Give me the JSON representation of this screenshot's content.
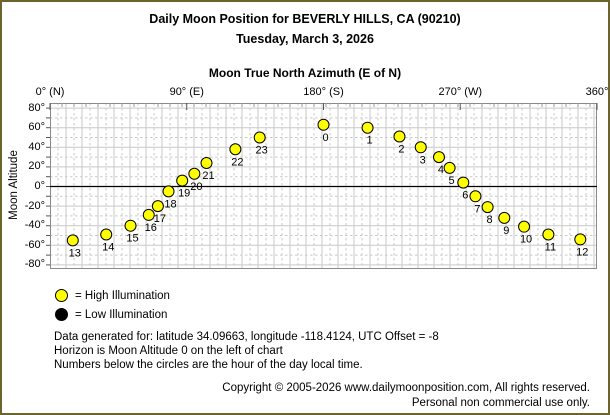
{
  "header": {
    "title": "Daily Moon Position for BEVERLY HILLS, CA (90210)",
    "subtitle": "Tuesday, March 3, 2026"
  },
  "chart_data": {
    "type": "scatter",
    "title": "Moon True North Azimuth (E of N)",
    "xlabel": "Moon True North Azimuth (E of N)",
    "ylabel": "Moon Altitude",
    "xlim": [
      0,
      360
    ],
    "ylim": [
      -85,
      85
    ],
    "grid": true,
    "horizon_altitude": 0,
    "x_ticks": [
      {
        "value": 0,
        "label": "0° (N)"
      },
      {
        "value": 90,
        "label": "90° (E)"
      },
      {
        "value": 180,
        "label": "180° (S)"
      },
      {
        "value": 270,
        "label": "270° (W)"
      },
      {
        "value": 360,
        "label": "360°"
      }
    ],
    "y_ticks": [
      {
        "value": 80,
        "label": "80°"
      },
      {
        "value": 60,
        "label": "60°"
      },
      {
        "value": 40,
        "label": "40°"
      },
      {
        "value": 20,
        "label": "20°"
      },
      {
        "value": 0,
        "label": "0°"
      },
      {
        "value": -20,
        "label": "-20°"
      },
      {
        "value": -40,
        "label": "-40°"
      },
      {
        "value": -60,
        "label": "-60°"
      },
      {
        "value": -80,
        "label": "-80°"
      }
    ],
    "colors": {
      "high_illumination": "#ffff00",
      "low_illumination": "#000000",
      "grid": "#c9c9c9",
      "plot_border": "#8a8a8a",
      "horizon": "#000000",
      "page_border": "#6b642d"
    },
    "points": [
      {
        "hour": 0,
        "azimuth": 180,
        "altitude": 63,
        "illumination": "high"
      },
      {
        "hour": 1,
        "azimuth": 209,
        "altitude": 60,
        "illumination": "high"
      },
      {
        "hour": 2,
        "azimuth": 230,
        "altitude": 51,
        "illumination": "high"
      },
      {
        "hour": 3,
        "azimuth": 244,
        "altitude": 40,
        "illumination": "high"
      },
      {
        "hour": 4,
        "azimuth": 256,
        "altitude": 30,
        "illumination": "high"
      },
      {
        "hour": 5,
        "azimuth": 263,
        "altitude": 19,
        "illumination": "high"
      },
      {
        "hour": 6,
        "azimuth": 272,
        "altitude": 4,
        "illumination": "high"
      },
      {
        "hour": 7,
        "azimuth": 280,
        "altitude": -10,
        "illumination": "high"
      },
      {
        "hour": 8,
        "azimuth": 288,
        "altitude": -21,
        "illumination": "high"
      },
      {
        "hour": 9,
        "azimuth": 299,
        "altitude": -32,
        "illumination": "high"
      },
      {
        "hour": 10,
        "azimuth": 312,
        "altitude": -41,
        "illumination": "high"
      },
      {
        "hour": 11,
        "azimuth": 328,
        "altitude": -49,
        "illumination": "high"
      },
      {
        "hour": 12,
        "azimuth": 349,
        "altitude": -54,
        "illumination": "high"
      },
      {
        "hour": 13,
        "azimuth": 15,
        "altitude": -55,
        "illumination": "high"
      },
      {
        "hour": 14,
        "azimuth": 37,
        "altitude": -49,
        "illumination": "high"
      },
      {
        "hour": 15,
        "azimuth": 53,
        "altitude": -40,
        "illumination": "high"
      },
      {
        "hour": 16,
        "azimuth": 65,
        "altitude": -29,
        "illumination": "high"
      },
      {
        "hour": 17,
        "azimuth": 71,
        "altitude": -20,
        "illumination": "high"
      },
      {
        "hour": 18,
        "azimuth": 78,
        "altitude": -5,
        "illumination": "high"
      },
      {
        "hour": 19,
        "azimuth": 87,
        "altitude": 6,
        "illumination": "high"
      },
      {
        "hour": 20,
        "azimuth": 95,
        "altitude": 13,
        "illumination": "high"
      },
      {
        "hour": 21,
        "azimuth": 103,
        "altitude": 24,
        "illumination": "high"
      },
      {
        "hour": 22,
        "azimuth": 122,
        "altitude": 38,
        "illumination": "high"
      },
      {
        "hour": 23,
        "azimuth": 138,
        "altitude": 50,
        "illumination": "high"
      }
    ]
  },
  "legend": {
    "items": [
      {
        "color": "#ffff00",
        "label": "= High Illumination"
      },
      {
        "color": "#000000",
        "label": "= Low Illumination"
      }
    ]
  },
  "footer": {
    "lines": [
      "Data generated for: latitude 34.09663, longitude -118.4124, UTC Offset = -8",
      "Horizon is Moon Altitude 0 on the left of chart",
      "Numbers below the circles are the hour of the day local time."
    ]
  },
  "copyright": {
    "lines": [
      "Copyright © 2005-2026 www.dailymoonposition.com, All rights reserved.",
      "Personal non commercial use only."
    ]
  }
}
